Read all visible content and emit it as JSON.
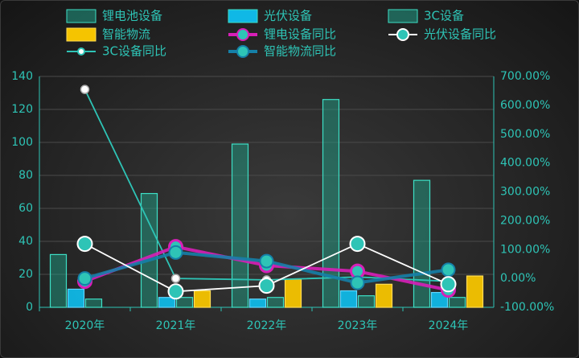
{
  "chart_data": {
    "type": "bar",
    "categories": [
      "2020年",
      "2021年",
      "2022年",
      "2023年",
      "2024年"
    ],
    "bar_series": [
      {
        "name": "锂电池设备",
        "values": [
          32,
          69,
          99,
          126,
          77
        ],
        "color": "#1fa88f"
      },
      {
        "name": "光伏设备",
        "values": [
          11,
          6,
          5,
          10,
          9
        ],
        "color": "#10b8e6"
      },
      {
        "name": "3C设备",
        "values": [
          5,
          6,
          6,
          7,
          6
        ],
        "color": "#1fa88f"
      },
      {
        "name": "智能物流",
        "values": [
          0,
          10,
          17,
          14,
          19
        ],
        "color": "#f5c400"
      }
    ],
    "line_series": [
      {
        "name": "锂电设备同比",
        "values": [
          -10,
          110,
          45,
          25,
          -40
        ],
        "color": "#d81fb8"
      },
      {
        "name": "光伏设备同比",
        "values": [
          120,
          -45,
          -25,
          120,
          -20
        ],
        "color": "#ffffff"
      },
      {
        "name": "3C设备同比",
        "values": [
          655,
          0,
          -5,
          5,
          -10
        ],
        "color": "#2ec4b6"
      },
      {
        "name": "智能物流同比",
        "values": [
          0,
          90,
          60,
          -15,
          30
        ],
        "color": "#1580a8"
      }
    ],
    "y_left": {
      "min": 0,
      "max": 140,
      "ticks": [
        "0",
        "20",
        "40",
        "60",
        "80",
        "100",
        "120",
        "140"
      ]
    },
    "y_right": {
      "min": -100,
      "max": 700,
      "ticks": [
        "-100.00%",
        "0.00%",
        "100.00%",
        "200.00%",
        "300.00%",
        "400.00%",
        "500.00%",
        "600.00%",
        "700.00%"
      ]
    },
    "legend_position": "top",
    "grid": true
  }
}
